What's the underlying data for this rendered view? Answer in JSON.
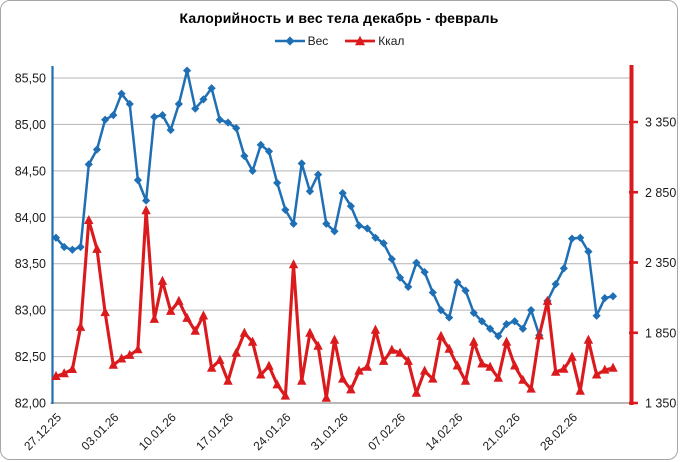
{
  "title": "Калорийность и вес тела декабрь - февраль",
  "legend": {
    "items": [
      {
        "label": "Вес",
        "color": "#1f6fb5",
        "marker": "diamond"
      },
      {
        "label": "Ккал",
        "color": "#da1a1d",
        "marker": "triangle"
      }
    ]
  },
  "chart_data": {
    "type": "line",
    "title": "Калорийность и вес тела декабрь - февраль",
    "grid": true,
    "legend_position": "top",
    "x": [
      "27.12.25",
      "28.12.25",
      "29.12.25",
      "30.12.25",
      "31.12.25",
      "01.01.26",
      "02.01.26",
      "03.01.26",
      "04.01.26",
      "05.01.26",
      "06.01.26",
      "07.01.26",
      "08.01.26",
      "09.01.26",
      "10.01.26",
      "11.01.26",
      "12.01.26",
      "13.01.26",
      "14.01.26",
      "15.01.26",
      "16.01.26",
      "17.01.26",
      "18.01.26",
      "19.01.26",
      "20.01.26",
      "21.01.26",
      "22.01.26",
      "23.01.26",
      "24.01.26",
      "25.01.26",
      "26.01.26",
      "27.01.26",
      "28.01.26",
      "29.01.26",
      "30.01.26",
      "31.01.26",
      "01.02.26",
      "02.02.26",
      "03.02.26",
      "04.02.26",
      "05.02.26",
      "06.02.26",
      "07.02.26",
      "08.02.26",
      "09.02.26",
      "10.02.26",
      "11.02.26",
      "12.02.26",
      "13.02.26",
      "14.02.26",
      "15.02.26",
      "16.02.26",
      "17.02.26",
      "18.02.26",
      "19.02.26",
      "20.02.26",
      "21.02.26",
      "22.02.26",
      "23.02.26",
      "24.02.26",
      "25.02.26",
      "26.02.26",
      "27.02.26",
      "28.02.26",
      "01.03.26",
      "02.03.26",
      "03.03.26",
      "04.03.26",
      "05.03.26"
    ],
    "x_tick_labels": [
      "27.12.25",
      "03.01.26",
      "10.01.26",
      "17.01.26",
      "24.01.26",
      "31.01.26",
      "07.02.26",
      "14.02.26",
      "21.02.26",
      "28.02.26"
    ],
    "series": [
      {
        "name": "Вес",
        "axis": "left",
        "color": "#1f6fb5",
        "marker": "diamond",
        "values": [
          83.78,
          83.68,
          83.65,
          83.68,
          84.57,
          84.73,
          85.05,
          85.1,
          85.33,
          85.22,
          84.4,
          84.18,
          85.08,
          85.1,
          84.94,
          85.22,
          85.58,
          85.17,
          85.27,
          85.39,
          85.05,
          85.02,
          84.96,
          84.66,
          84.5,
          84.78,
          84.71,
          84.37,
          84.08,
          83.93,
          84.58,
          84.28,
          84.46,
          83.93,
          83.85,
          84.26,
          84.12,
          83.91,
          83.88,
          83.78,
          83.72,
          83.55,
          83.35,
          83.25,
          83.51,
          83.41,
          83.19,
          83.0,
          82.92,
          83.3,
          83.21,
          82.97,
          82.88,
          82.8,
          82.72,
          82.85,
          82.88,
          82.8,
          83.0,
          82.73,
          83.1,
          83.28,
          83.45,
          83.77,
          83.78,
          83.63,
          82.94,
          83.13,
          83.15
        ]
      },
      {
        "name": "Ккал",
        "axis": "right",
        "color": "#da1a1d",
        "marker": "triangle",
        "values": [
          1540,
          1560,
          1590,
          1890,
          2650,
          2445,
          1995,
          1620,
          1665,
          1690,
          1730,
          2720,
          1947,
          2217,
          2004,
          2075,
          1954,
          1862,
          1971,
          1599,
          1655,
          1506,
          1706,
          1848,
          1784,
          1551,
          1613,
          1480,
          1400,
          2335,
          1506,
          1848,
          1755,
          1385,
          1798,
          1521,
          1445,
          1578,
          1606,
          1869,
          1648,
          1727,
          1706,
          1648,
          1421,
          1578,
          1521,
          1826,
          1734,
          1615,
          1506,
          1784,
          1629,
          1606,
          1528,
          1784,
          1615,
          1513,
          1450,
          1829,
          2075,
          1570,
          1592,
          1677,
          1435,
          1798,
          1551,
          1585,
          1599
        ]
      }
    ],
    "left_axis": {
      "min": 82.0,
      "max": 85.5,
      "step": 0.5,
      "tick_labels": [
        "85,50",
        "85,00",
        "84,50",
        "84,00",
        "83,50",
        "83,00",
        "82,50",
        "82,00"
      ],
      "color": "#1f6fb5"
    },
    "right_axis": {
      "min": 1350,
      "max": 3700,
      "step": 500,
      "tick_labels": [
        "3 350",
        "2 850",
        "2 350",
        "1 850",
        "1 350"
      ],
      "tick_values": [
        3350,
        2850,
        2350,
        1850,
        1350
      ],
      "color": "#da1a1d"
    },
    "grid_color": "#b3b3b3",
    "x_axis_color": "#8c8c8c"
  }
}
